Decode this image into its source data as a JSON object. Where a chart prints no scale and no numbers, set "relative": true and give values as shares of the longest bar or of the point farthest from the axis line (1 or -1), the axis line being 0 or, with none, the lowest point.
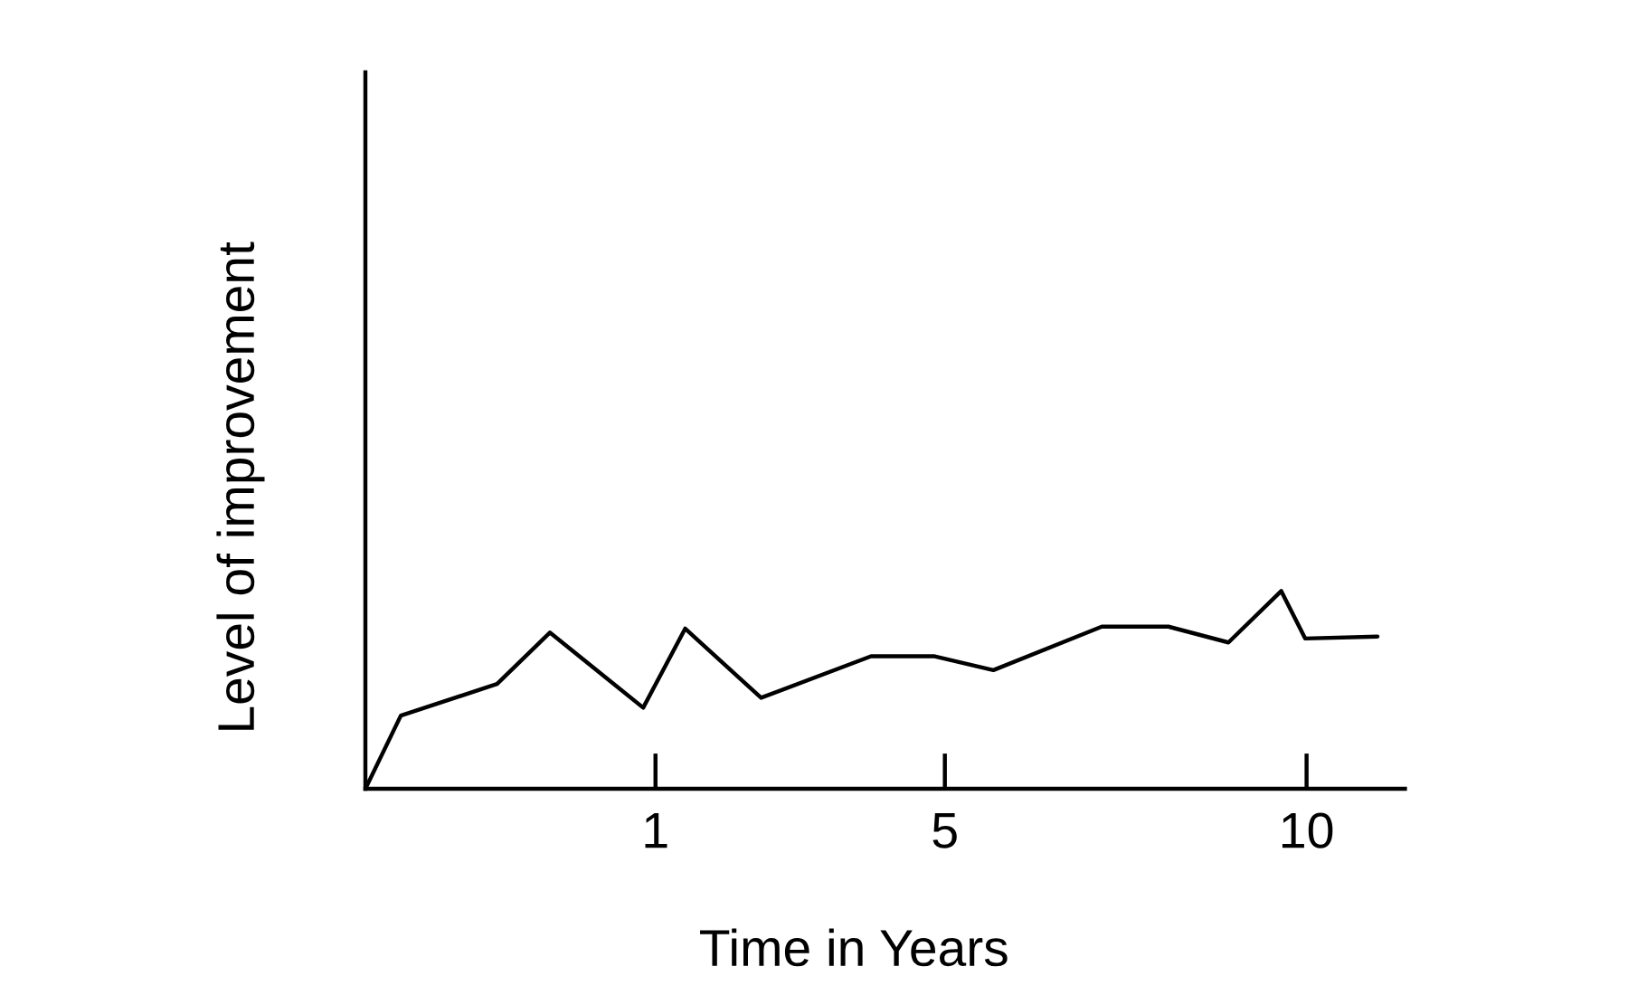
{
  "chart_data": {
    "type": "line",
    "xlabel": "Time in Years",
    "ylabel": "Level of improvement",
    "relative": true,
    "x": [
      -3.01,
      -2.52,
      -1.19,
      -0.46,
      0.83,
      1.41,
      2.46,
      3.98,
      4.86,
      5.67,
      7.17,
      8.09,
      8.92,
      9.65,
      9.98,
      10.98
    ],
    "xlim": [
      -3.01,
      11.36
    ],
    "xticks": [
      1,
      5,
      10
    ],
    "tick_labels": "x",
    "marker": "none",
    "line_style": "solid",
    "series": [
      {
        "color": "#000000",
        "values": [
          0,
          0.37,
          0.53,
          0.79,
          0.41,
          0.81,
          0.46,
          0.67,
          0.67,
          0.6,
          0.82,
          0.82,
          0.74,
          1,
          0.76,
          0.77
        ]
      }
    ]
  }
}
